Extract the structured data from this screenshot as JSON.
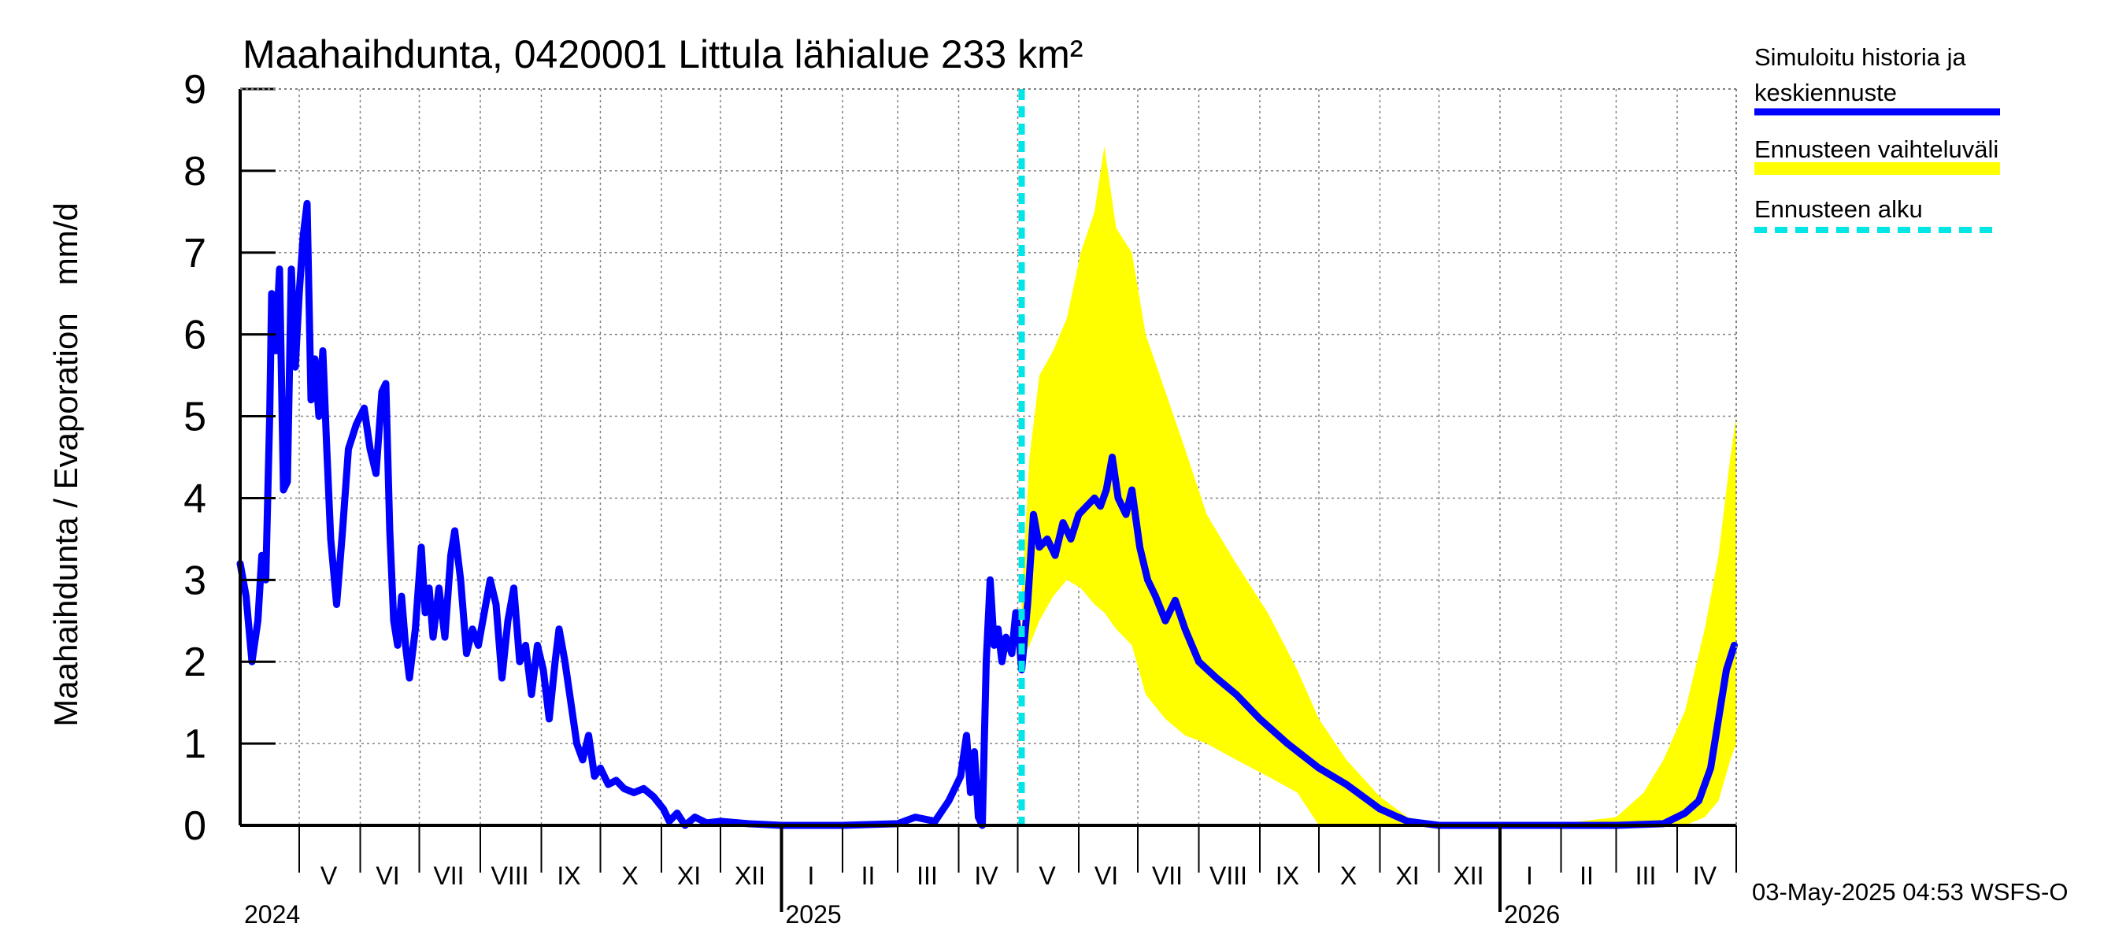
{
  "chart_data": {
    "type": "area",
    "title": "Maahaihdunta, 0420001 Littula lähialue 233 km²",
    "ylabel": "Maahaihdunta / Evaporation   mm/d",
    "xlabel": "",
    "ylim": [
      0,
      9
    ],
    "xlim": [
      "2024-04-01",
      "2026-05-01"
    ],
    "y_ticks": [
      0,
      1,
      2,
      3,
      4,
      5,
      6,
      7,
      8,
      9
    ],
    "grid": true,
    "legend_position": "right",
    "forecast_start": "2025-05-03",
    "month_labels": [
      {
        "label": "V",
        "date": "2024-05-16"
      },
      {
        "label": "VI",
        "date": "2024-06-15"
      },
      {
        "label": "VII",
        "date": "2024-07-16"
      },
      {
        "label": "VIII",
        "date": "2024-08-16"
      },
      {
        "label": "IX",
        "date": "2024-09-15"
      },
      {
        "label": "X",
        "date": "2024-10-16"
      },
      {
        "label": "XI",
        "date": "2024-11-15"
      },
      {
        "label": "XII",
        "date": "2024-12-16"
      },
      {
        "label": "I",
        "date": "2025-01-16"
      },
      {
        "label": "II",
        "date": "2025-02-14"
      },
      {
        "label": "III",
        "date": "2025-03-16"
      },
      {
        "label": "IV",
        "date": "2025-04-15"
      },
      {
        "label": "V",
        "date": "2025-05-16"
      },
      {
        "label": "VI",
        "date": "2025-06-15"
      },
      {
        "label": "VII",
        "date": "2025-07-16"
      },
      {
        "label": "VIII",
        "date": "2025-08-16"
      },
      {
        "label": "IX",
        "date": "2025-09-15"
      },
      {
        "label": "X",
        "date": "2025-10-16"
      },
      {
        "label": "XI",
        "date": "2025-11-15"
      },
      {
        "label": "XII",
        "date": "2025-12-16"
      },
      {
        "label": "I",
        "date": "2026-01-16"
      },
      {
        "label": "II",
        "date": "2026-02-14"
      },
      {
        "label": "III",
        "date": "2026-03-16"
      },
      {
        "label": "IV",
        "date": "2026-04-15"
      }
    ],
    "year_labels": [
      {
        "label": "2024",
        "date": "2024-04-01"
      },
      {
        "label": "2025",
        "date": "2025-01-01"
      },
      {
        "label": "2026",
        "date": "2026-01-01"
      }
    ],
    "month_ticks": [
      "2024-05-01",
      "2024-06-01",
      "2024-07-01",
      "2024-08-01",
      "2024-09-01",
      "2024-10-01",
      "2024-11-01",
      "2024-12-01",
      "2025-01-01",
      "2025-02-01",
      "2025-03-01",
      "2025-04-01",
      "2025-05-01",
      "2025-06-01",
      "2025-07-01",
      "2025-08-01",
      "2025-09-01",
      "2025-10-01",
      "2025-11-01",
      "2025-12-01",
      "2026-01-01",
      "2026-02-01",
      "2026-03-01",
      "2026-04-01",
      "2026-05-01"
    ],
    "year_ticks": [
      "2025-01-01",
      "2026-01-01"
    ],
    "series": [
      {
        "name": "Simuloitu historia ja keskiennuste",
        "color": "#0000ff",
        "points": [
          [
            "2024-04-01",
            3.2
          ],
          [
            "2024-04-04",
            2.8
          ],
          [
            "2024-04-07",
            2.0
          ],
          [
            "2024-04-10",
            2.5
          ],
          [
            "2024-04-12",
            3.3
          ],
          [
            "2024-04-14",
            3.0
          ],
          [
            "2024-04-16",
            5.0
          ],
          [
            "2024-04-17",
            6.5
          ],
          [
            "2024-04-19",
            5.8
          ],
          [
            "2024-04-21",
            6.8
          ],
          [
            "2024-04-23",
            4.1
          ],
          [
            "2024-04-25",
            4.2
          ],
          [
            "2024-04-27",
            6.8
          ],
          [
            "2024-04-29",
            5.6
          ],
          [
            "2024-05-01",
            6.5
          ],
          [
            "2024-05-03",
            7.2
          ],
          [
            "2024-05-05",
            7.6
          ],
          [
            "2024-05-07",
            5.2
          ],
          [
            "2024-05-09",
            5.7
          ],
          [
            "2024-05-11",
            5.0
          ],
          [
            "2024-05-13",
            5.8
          ],
          [
            "2024-05-15",
            4.6
          ],
          [
            "2024-05-17",
            3.5
          ],
          [
            "2024-05-20",
            2.7
          ],
          [
            "2024-05-23",
            3.6
          ],
          [
            "2024-05-26",
            4.6
          ],
          [
            "2024-05-30",
            4.9
          ],
          [
            "2024-06-03",
            5.1
          ],
          [
            "2024-06-06",
            4.6
          ],
          [
            "2024-06-09",
            4.3
          ],
          [
            "2024-06-12",
            5.3
          ],
          [
            "2024-06-14",
            5.4
          ],
          [
            "2024-06-16",
            3.6
          ],
          [
            "2024-06-18",
            2.5
          ],
          [
            "2024-06-20",
            2.2
          ],
          [
            "2024-06-22",
            2.8
          ],
          [
            "2024-06-24",
            2.2
          ],
          [
            "2024-06-26",
            1.8
          ],
          [
            "2024-06-29",
            2.4
          ],
          [
            "2024-07-02",
            3.4
          ],
          [
            "2024-07-04",
            2.6
          ],
          [
            "2024-07-06",
            2.9
          ],
          [
            "2024-07-08",
            2.3
          ],
          [
            "2024-07-11",
            2.9
          ],
          [
            "2024-07-14",
            2.3
          ],
          [
            "2024-07-17",
            3.3
          ],
          [
            "2024-07-19",
            3.6
          ],
          [
            "2024-07-22",
            3.0
          ],
          [
            "2024-07-25",
            2.1
          ],
          [
            "2024-07-28",
            2.4
          ],
          [
            "2024-07-31",
            2.2
          ],
          [
            "2024-08-03",
            2.6
          ],
          [
            "2024-08-06",
            3.0
          ],
          [
            "2024-08-09",
            2.7
          ],
          [
            "2024-08-12",
            1.8
          ],
          [
            "2024-08-15",
            2.5
          ],
          [
            "2024-08-18",
            2.9
          ],
          [
            "2024-08-21",
            2.0
          ],
          [
            "2024-08-24",
            2.2
          ],
          [
            "2024-08-27",
            1.6
          ],
          [
            "2024-08-30",
            2.2
          ],
          [
            "2024-09-02",
            1.9
          ],
          [
            "2024-09-05",
            1.3
          ],
          [
            "2024-09-08",
            2.0
          ],
          [
            "2024-09-10",
            2.4
          ],
          [
            "2024-09-13",
            2.0
          ],
          [
            "2024-09-16",
            1.5
          ],
          [
            "2024-09-19",
            1.0
          ],
          [
            "2024-09-22",
            0.8
          ],
          [
            "2024-09-25",
            1.1
          ],
          [
            "2024-09-28",
            0.6
          ],
          [
            "2024-10-01",
            0.7
          ],
          [
            "2024-10-05",
            0.5
          ],
          [
            "2024-10-09",
            0.55
          ],
          [
            "2024-10-13",
            0.45
          ],
          [
            "2024-10-18",
            0.4
          ],
          [
            "2024-10-23",
            0.45
          ],
          [
            "2024-10-28",
            0.35
          ],
          [
            "2024-11-02",
            0.2
          ],
          [
            "2024-11-05",
            0.05
          ],
          [
            "2024-11-09",
            0.15
          ],
          [
            "2024-11-13",
            0.0
          ],
          [
            "2024-11-18",
            0.1
          ],
          [
            "2024-11-24",
            0.03
          ],
          [
            "2024-12-01",
            0.05
          ],
          [
            "2024-12-15",
            0.02
          ],
          [
            "2025-01-01",
            0.0
          ],
          [
            "2025-02-01",
            0.0
          ],
          [
            "2025-03-01",
            0.02
          ],
          [
            "2025-03-10",
            0.1
          ],
          [
            "2025-03-20",
            0.05
          ],
          [
            "2025-03-27",
            0.3
          ],
          [
            "2025-04-02",
            0.6
          ],
          [
            "2025-04-05",
            1.1
          ],
          [
            "2025-04-07",
            0.4
          ],
          [
            "2025-04-09",
            0.9
          ],
          [
            "2025-04-11",
            0.1
          ],
          [
            "2025-04-13",
            0.0
          ],
          [
            "2025-04-15",
            2.0
          ],
          [
            "2025-04-17",
            3.0
          ],
          [
            "2025-04-19",
            2.2
          ],
          [
            "2025-04-21",
            2.4
          ],
          [
            "2025-04-23",
            2.0
          ],
          [
            "2025-04-25",
            2.3
          ],
          [
            "2025-04-28",
            2.1
          ],
          [
            "2025-04-30",
            2.6
          ],
          [
            "2025-05-02",
            2.2
          ],
          [
            "2025-05-03",
            1.9
          ],
          [
            "2025-05-06",
            2.7
          ],
          [
            "2025-05-09",
            3.8
          ],
          [
            "2025-05-12",
            3.4
          ],
          [
            "2025-05-16",
            3.5
          ],
          [
            "2025-05-20",
            3.3
          ],
          [
            "2025-05-24",
            3.7
          ],
          [
            "2025-05-28",
            3.5
          ],
          [
            "2025-06-01",
            3.8
          ],
          [
            "2025-06-05",
            3.9
          ],
          [
            "2025-06-09",
            4.0
          ],
          [
            "2025-06-12",
            3.9
          ],
          [
            "2025-06-15",
            4.1
          ],
          [
            "2025-06-18",
            4.5
          ],
          [
            "2025-06-21",
            4.0
          ],
          [
            "2025-06-25",
            3.8
          ],
          [
            "2025-06-28",
            4.1
          ],
          [
            "2025-07-02",
            3.4
          ],
          [
            "2025-07-06",
            3.0
          ],
          [
            "2025-07-10",
            2.8
          ],
          [
            "2025-07-15",
            2.5
          ],
          [
            "2025-07-20",
            2.75
          ],
          [
            "2025-07-25",
            2.4
          ],
          [
            "2025-08-01",
            2.0
          ],
          [
            "2025-08-10",
            1.8
          ],
          [
            "2025-08-20",
            1.6
          ],
          [
            "2025-09-01",
            1.3
          ],
          [
            "2025-09-15",
            1.0
          ],
          [
            "2025-10-01",
            0.7
          ],
          [
            "2025-10-15",
            0.5
          ],
          [
            "2025-11-01",
            0.2
          ],
          [
            "2025-11-15",
            0.05
          ],
          [
            "2025-12-01",
            0.0
          ],
          [
            "2026-01-01",
            0.0
          ],
          [
            "2026-02-01",
            0.0
          ],
          [
            "2026-03-01",
            0.0
          ],
          [
            "2026-03-25",
            0.02
          ],
          [
            "2026-04-05",
            0.15
          ],
          [
            "2026-04-12",
            0.3
          ],
          [
            "2026-04-18",
            0.7
          ],
          [
            "2026-04-22",
            1.3
          ],
          [
            "2026-04-26",
            1.9
          ],
          [
            "2026-04-30",
            2.2
          ]
        ]
      },
      {
        "name": "Ennusteen vaihteluväli",
        "color": "#ffff00",
        "band": [
          [
            "2025-05-03",
            2.0,
            2.8
          ],
          [
            "2025-05-07",
            2.2,
            4.5
          ],
          [
            "2025-05-12",
            2.5,
            5.5
          ],
          [
            "2025-05-19",
            2.8,
            5.8
          ],
          [
            "2025-05-26",
            3.0,
            6.2
          ],
          [
            "2025-06-02",
            2.9,
            7.0
          ],
          [
            "2025-06-09",
            2.7,
            7.5
          ],
          [
            "2025-06-14",
            2.6,
            8.3
          ],
          [
            "2025-06-20",
            2.4,
            7.3
          ],
          [
            "2025-06-28",
            2.2,
            7.0
          ],
          [
            "2025-07-05",
            1.6,
            6.0
          ],
          [
            "2025-07-15",
            1.3,
            5.3
          ],
          [
            "2025-07-25",
            1.1,
            4.6
          ],
          [
            "2025-08-05",
            1.0,
            3.8
          ],
          [
            "2025-08-20",
            0.8,
            3.2
          ],
          [
            "2025-09-05",
            0.6,
            2.6
          ],
          [
            "2025-09-20",
            0.4,
            1.9
          ],
          [
            "2025-10-01",
            0.0,
            1.3
          ],
          [
            "2025-10-15",
            0.0,
            0.8
          ],
          [
            "2025-11-01",
            0.0,
            0.35
          ],
          [
            "2025-11-15",
            0.0,
            0.1
          ],
          [
            "2025-12-01",
            0.0,
            0.02
          ],
          [
            "2026-02-01",
            0.0,
            0.02
          ],
          [
            "2026-03-01",
            0.0,
            0.1
          ],
          [
            "2026-03-15",
            0.0,
            0.4
          ],
          [
            "2026-03-25",
            0.0,
            0.8
          ],
          [
            "2026-04-05",
            0.0,
            1.4
          ],
          [
            "2026-04-15",
            0.1,
            2.4
          ],
          [
            "2026-04-22",
            0.3,
            3.3
          ],
          [
            "2026-04-28",
            0.8,
            4.5
          ],
          [
            "2026-05-01",
            1.0,
            5.0
          ]
        ]
      }
    ],
    "legend": {
      "sim_line1": "Simuloitu historia ja",
      "sim_line2": "keskiennuste",
      "band": "Ennusteen vaihteluväli",
      "start": "Ennusteen alku"
    },
    "timestamp": "03-May-2025 04:53 WSFS-O",
    "colors": {
      "line": "#0000ff",
      "band": "#ffff00",
      "forecast_start": "#00e5e5",
      "grid": "#808080"
    }
  }
}
